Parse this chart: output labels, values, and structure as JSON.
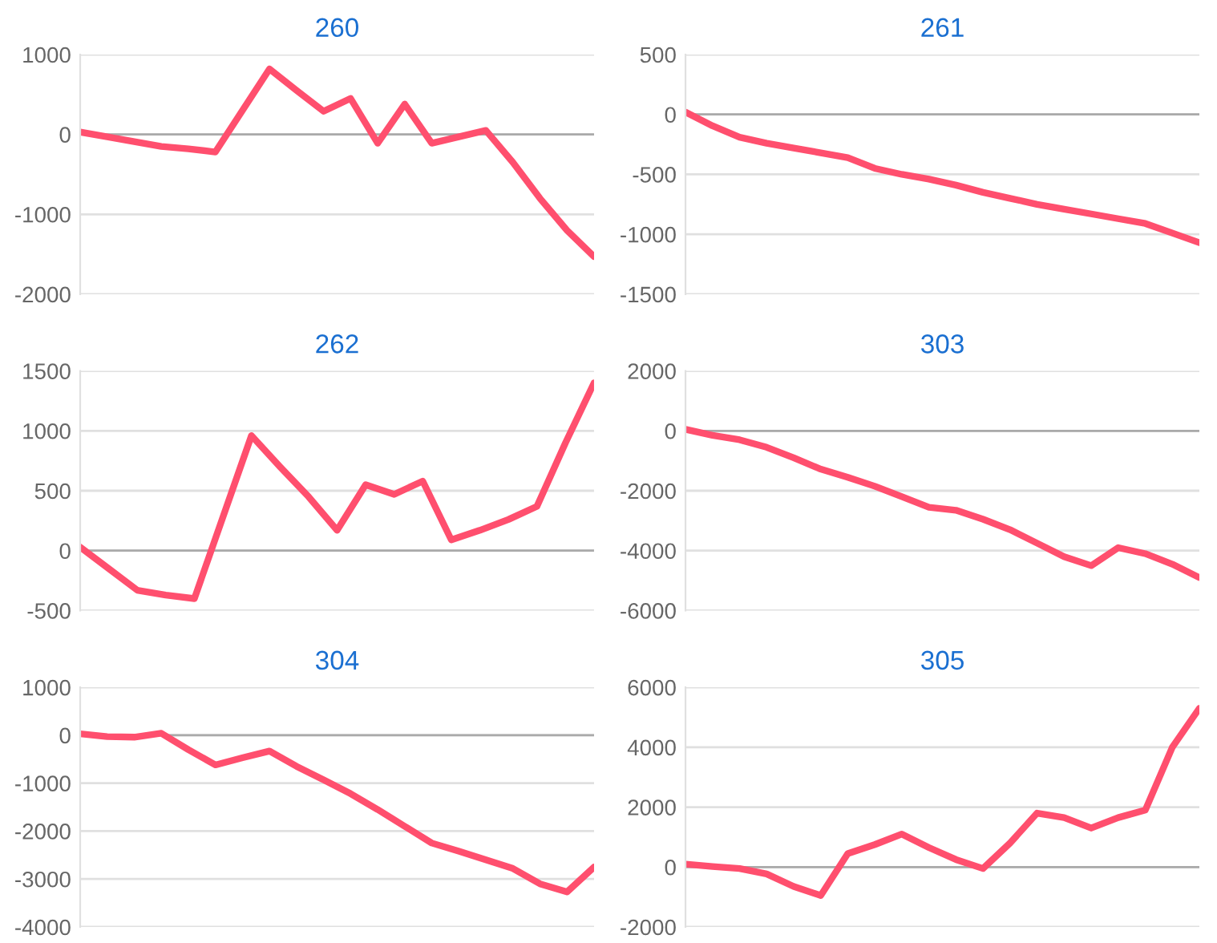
{
  "chart_data": [
    {
      "type": "line",
      "title": "260",
      "categories": [
        null,
        null,
        null,
        null,
        null,
        null,
        null,
        null,
        null,
        null,
        null,
        null,
        null,
        null,
        null,
        null,
        null,
        null,
        null,
        null
      ],
      "series": [
        {
          "color": "#ff4f6e",
          "values": [
            30,
            -30,
            -90,
            -150,
            -180,
            -220,
            300,
            820,
            550,
            290,
            450,
            -110,
            380,
            -110,
            -30,
            50,
            -350,
            -800,
            -1200,
            -1530
          ]
        }
      ],
      "ylim": [
        -2000,
        1000
      ],
      "yticks": [
        -2000,
        -1000,
        0,
        1000
      ],
      "grid": "y",
      "ref_lines": [
        {
          "axis": "y",
          "value": 0,
          "color": "#aaaaaa"
        }
      ]
    },
    {
      "type": "line",
      "title": "261",
      "categories": [
        null,
        null,
        null,
        null,
        null,
        null,
        null,
        null,
        null,
        null,
        null,
        null,
        null,
        null,
        null,
        null,
        null,
        null,
        null,
        null
      ],
      "series": [
        {
          "color": "#ff4f6e",
          "values": [
            20,
            -95,
            -190,
            -240,
            -280,
            -320,
            -360,
            -450,
            -500,
            -540,
            -590,
            -650,
            -700,
            -750,
            -790,
            -830,
            -870,
            -910,
            -990,
            -1070
          ]
        }
      ],
      "ylim": [
        -1500,
        500
      ],
      "yticks": [
        -1500,
        -1000,
        -500,
        0,
        500
      ],
      "grid": "y",
      "ref_lines": [
        {
          "axis": "y",
          "value": 0,
          "color": "#aaaaaa"
        }
      ]
    },
    {
      "type": "line",
      "title": "262",
      "categories": [
        null,
        null,
        null,
        null,
        null,
        null,
        null,
        null,
        null,
        null,
        null,
        null,
        null,
        null,
        null,
        null,
        null,
        null,
        null
      ],
      "series": [
        {
          "color": "#ff4f6e",
          "values": [
            30,
            -150,
            -330,
            -370,
            -400,
            280,
            960,
            700,
            450,
            170,
            550,
            470,
            580,
            90,
            170,
            260,
            370,
            900,
            1400
          ]
        }
      ],
      "ylim": [
        -500,
        1500
      ],
      "yticks": [
        -500,
        0,
        500,
        1000,
        1500
      ],
      "grid": "y",
      "ref_lines": [
        {
          "axis": "y",
          "value": 0,
          "color": "#aaaaaa"
        }
      ]
    },
    {
      "type": "line",
      "title": "303",
      "categories": [
        null,
        null,
        null,
        null,
        null,
        null,
        null,
        null,
        null,
        null,
        null,
        null,
        null,
        null,
        null,
        null,
        null,
        null,
        null,
        null
      ],
      "series": [
        {
          "color": "#ff4f6e",
          "values": [
            50,
            -150,
            -300,
            -550,
            -900,
            -1280,
            -1550,
            -1850,
            -2200,
            -2550,
            -2650,
            -2950,
            -3300,
            -3750,
            -4200,
            -4500,
            -3900,
            -4100,
            -4450,
            -4900
          ]
        }
      ],
      "ylim": [
        -6000,
        2000
      ],
      "yticks": [
        -6000,
        -4000,
        -2000,
        0,
        2000
      ],
      "grid": "y",
      "ref_lines": [
        {
          "axis": "y",
          "value": 0,
          "color": "#aaaaaa"
        }
      ]
    },
    {
      "type": "line",
      "title": "304",
      "categories": [
        null,
        null,
        null,
        null,
        null,
        null,
        null,
        null,
        null,
        null,
        null,
        null,
        null,
        null,
        null,
        null,
        null,
        null,
        null,
        null
      ],
      "series": [
        {
          "color": "#ff4f6e",
          "values": [
            30,
            -30,
            -40,
            40,
            -300,
            -620,
            -470,
            -330,
            -650,
            -930,
            -1220,
            -1550,
            -1900,
            -2250,
            -2420,
            -2600,
            -2780,
            -3100,
            -3270,
            -2750
          ]
        }
      ],
      "ylim": [
        -4000,
        1000
      ],
      "yticks": [
        -4000,
        -3000,
        -2000,
        -1000,
        0,
        1000
      ],
      "grid": "y",
      "ref_lines": [
        {
          "axis": "y",
          "value": 0,
          "color": "#aaaaaa"
        }
      ]
    },
    {
      "type": "line",
      "title": "305",
      "categories": [
        null,
        null,
        null,
        null,
        null,
        null,
        null,
        null,
        null,
        null,
        null,
        null,
        null,
        null,
        null,
        null,
        null,
        null,
        null,
        null
      ],
      "series": [
        {
          "color": "#ff4f6e",
          "values": [
            100,
            20,
            -50,
            -230,
            -650,
            -950,
            450,
            750,
            1100,
            650,
            250,
            -50,
            800,
            1800,
            1650,
            1300,
            1650,
            1900,
            4000,
            5300
          ]
        }
      ],
      "ylim": [
        -2000,
        6000
      ],
      "yticks": [
        -2000,
        0,
        2000,
        4000,
        6000
      ],
      "grid": "y",
      "ref_lines": [
        {
          "axis": "y",
          "value": 0,
          "color": "#aaaaaa"
        }
      ]
    }
  ]
}
